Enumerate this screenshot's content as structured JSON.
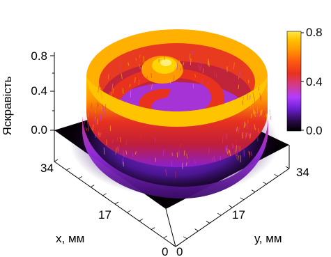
{
  "chart_data": {
    "type": "surface-3d",
    "title": "",
    "zlabel": "Яскравість",
    "xlabel": "x, мм",
    "ylabel": "у, мм",
    "xlim": [
      0,
      34
    ],
    "ylim": [
      0,
      34
    ],
    "zlim": [
      0,
      0.8
    ],
    "x_ticks": [
      "0",
      "17",
      "34"
    ],
    "y_ticks": [
      "0",
      "17",
      "34"
    ],
    "z_ticks": [
      "0.0",
      "0.4",
      "0.8"
    ],
    "colorbar": {
      "ticks": [
        "0.0",
        "0.4",
        "0.8"
      ],
      "range": [
        0,
        0.8
      ],
      "colors": [
        "#000000",
        "#2a0a4a",
        "#6a1fd0",
        "#b23cff",
        "#d43a8a",
        "#e8321e",
        "#ff5a10",
        "#ff9a00",
        "#ffc400",
        "#ffe84a"
      ]
    },
    "surface_description_values": {
      "outer_ring_peak": 0.8,
      "inner_spiral_level": 0.55,
      "center_peak": 0.75,
      "base_level": 0.0
    }
  }
}
